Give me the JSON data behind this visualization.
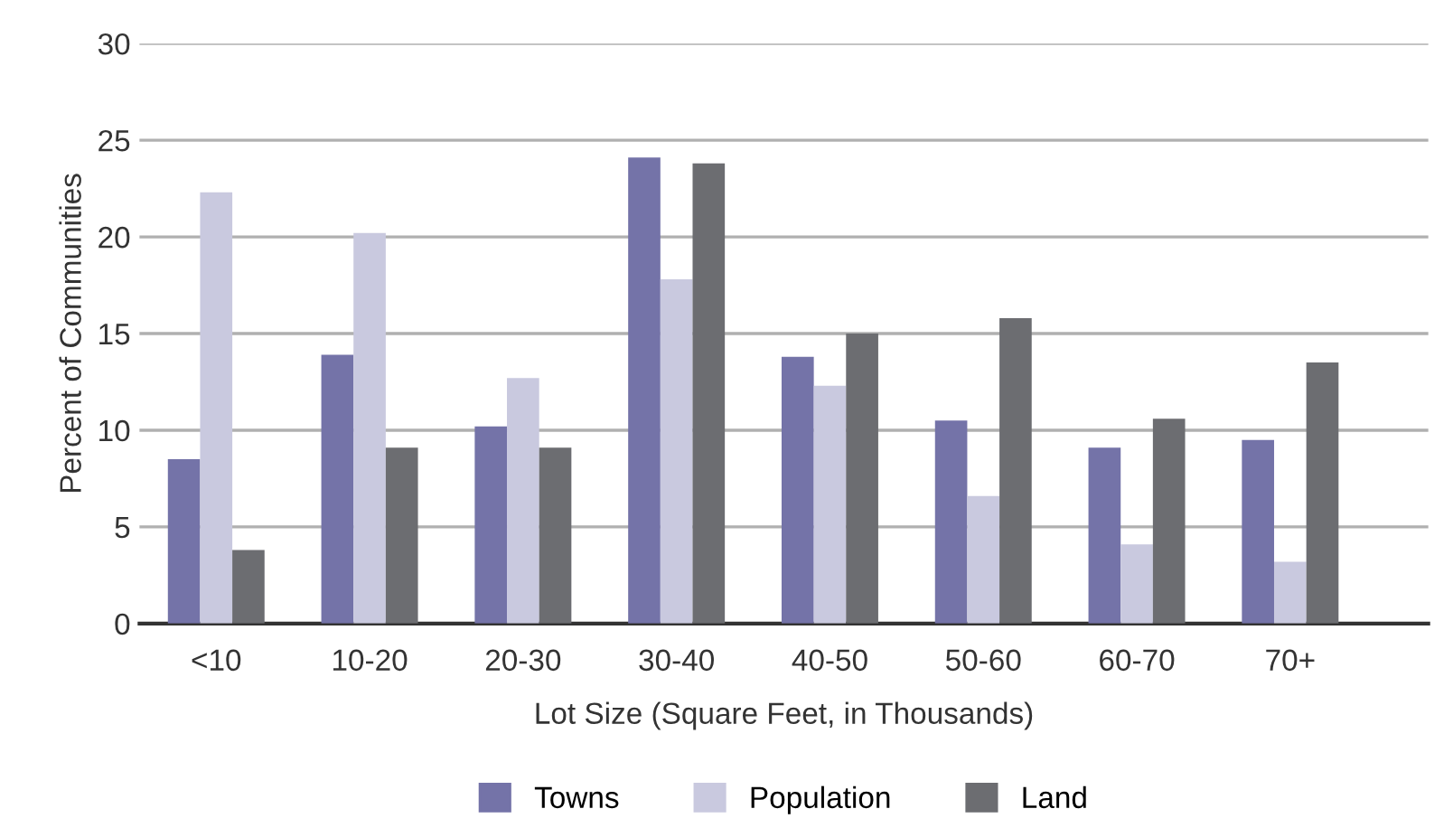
{
  "chart_data": {
    "type": "bar",
    "xlabel": "Lot Size (Square Feet, in Thousands)",
    "ylabel": "Percent of Communities",
    "categories": [
      "<10",
      "10-20",
      "20-30",
      "30-40",
      "40-50",
      "50-60",
      "60-70",
      "70+"
    ],
    "series": [
      {
        "name": "Towns",
        "color": "#7473a8",
        "values": [
          8.5,
          13.9,
          10.2,
          24.1,
          13.8,
          10.5,
          9.1,
          9.5
        ]
      },
      {
        "name": "Population",
        "color": "#c9c9df",
        "values": [
          22.3,
          20.2,
          12.7,
          17.8,
          12.3,
          6.6,
          4.1,
          3.2
        ]
      },
      {
        "name": "Land",
        "color": "#6c6d71",
        "values": [
          3.8,
          9.1,
          9.1,
          23.8,
          15.0,
          15.8,
          10.6,
          13.5
        ]
      }
    ],
    "ylim": [
      0,
      30
    ],
    "yticks": [
      0,
      5,
      10,
      15,
      20,
      25,
      30
    ],
    "grid": "y",
    "legend": "bottom"
  }
}
